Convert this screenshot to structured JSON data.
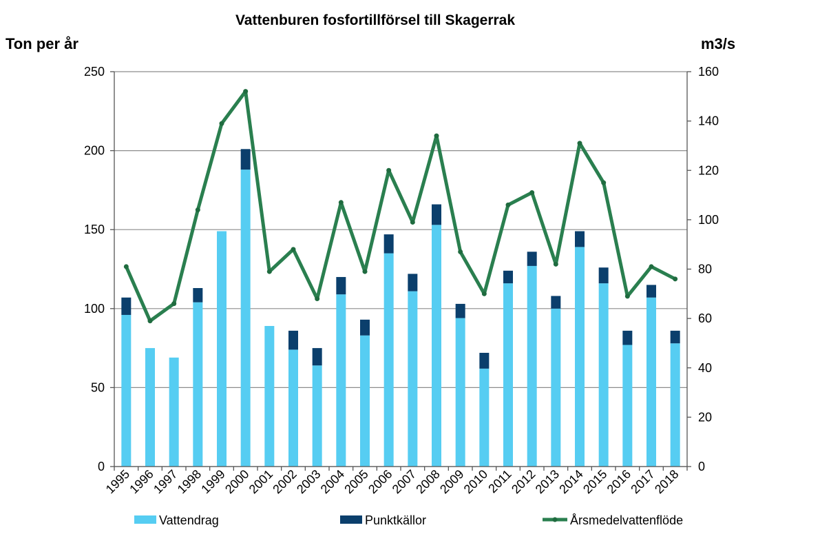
{
  "chart_data": {
    "type": "bar",
    "title": "Vattenburen fosfortillförsel till Skagerrak",
    "ylabel_left": "Ton per år",
    "ylabel_right": "m3/s",
    "xlabel": "",
    "categories": [
      "1995",
      "1996",
      "1997",
      "1998",
      "1999",
      "2000",
      "2001",
      "2002",
      "2003",
      "2004",
      "2005",
      "2006",
      "2007",
      "2008",
      "2009",
      "2010",
      "2011",
      "2012",
      "2013",
      "2014",
      "2015",
      "2016",
      "2017",
      "2018"
    ],
    "ylim_left": [
      0,
      250
    ],
    "yticks_left": [
      "0",
      "50",
      "100",
      "150",
      "200",
      "250"
    ],
    "ylim_right": [
      0,
      160
    ],
    "yticks_right": [
      "0",
      "20",
      "40",
      "60",
      "80",
      "100",
      "120",
      "140",
      "160"
    ],
    "grid": true,
    "stacked": true,
    "legend_position": "bottom",
    "series": [
      {
        "name": "Vattendrag",
        "type": "bar",
        "axis": "left",
        "color": "#56CDF2",
        "values": [
          96,
          75,
          69,
          104,
          149,
          188,
          89,
          74,
          64,
          109,
          83,
          135,
          111,
          153,
          94,
          62,
          116,
          127,
          100,
          139,
          116,
          77,
          107,
          78
        ]
      },
      {
        "name": "Punktkällor",
        "type": "bar",
        "axis": "left",
        "color": "#0B3F6C",
        "values": [
          11,
          0,
          0,
          9,
          0,
          13,
          0,
          12,
          11,
          11,
          10,
          12,
          11,
          13,
          9,
          10,
          8,
          9,
          8,
          10,
          10,
          9,
          8,
          8
        ]
      },
      {
        "name": "Årsmedelvattenflöde",
        "type": "line",
        "axis": "right",
        "color": "#2A7F4F",
        "values": [
          81,
          59,
          66,
          104,
          139,
          152,
          79,
          88,
          68,
          107,
          79,
          120,
          99,
          134,
          87,
          70,
          106,
          111,
          82,
          131,
          115,
          69,
          81,
          76
        ]
      }
    ]
  }
}
